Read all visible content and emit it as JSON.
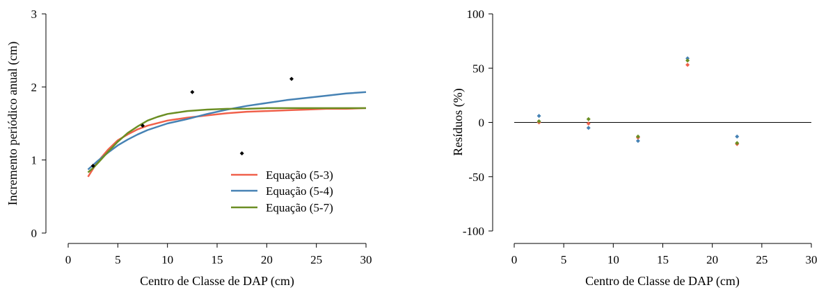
{
  "chart_data": [
    {
      "type": "line",
      "xlabel": "Centro de Classe de DAP (cm)",
      "ylabel": "Incremento periódico anual (cm)",
      "xlim": [
        0,
        30
      ],
      "ylim": [
        0,
        3
      ],
      "xticks": [
        "0",
        "5",
        "10",
        "15",
        "20",
        "25",
        "30"
      ],
      "yticks": [
        "0",
        "1",
        "2",
        "3"
      ],
      "observed": {
        "x": [
          2.5,
          7.5,
          12.5,
          17.5,
          22.5
        ],
        "y": [
          0.92,
          1.47,
          1.93,
          1.09,
          2.11
        ],
        "color": "#000000"
      },
      "series": [
        {
          "name": "Equação (5-3)",
          "color": "#f0604a",
          "x": [
            2,
            2.5,
            3,
            4,
            5,
            6,
            7,
            8,
            10,
            12,
            14,
            16,
            18,
            20,
            22,
            24,
            26,
            28,
            30
          ],
          "y": [
            0.77,
            0.88,
            0.98,
            1.14,
            1.27,
            1.35,
            1.42,
            1.47,
            1.54,
            1.58,
            1.61,
            1.64,
            1.66,
            1.67,
            1.68,
            1.69,
            1.7,
            1.7,
            1.71
          ]
        },
        {
          "name": "Equação (5-4)",
          "color": "#4682b4",
          "x": [
            2,
            2.5,
            3,
            4,
            5,
            6,
            7,
            8,
            10,
            12,
            14,
            16,
            18,
            20,
            22,
            24,
            26,
            28,
            30
          ],
          "y": [
            0.87,
            0.93,
            0.99,
            1.1,
            1.2,
            1.28,
            1.35,
            1.41,
            1.5,
            1.56,
            1.63,
            1.69,
            1.74,
            1.78,
            1.82,
            1.85,
            1.88,
            1.91,
            1.93
          ]
        },
        {
          "name": "Equação (5-7)",
          "color": "#6b8e23",
          "x": [
            2,
            2.5,
            3,
            4,
            5,
            6,
            7,
            8,
            9,
            10,
            12,
            14,
            16,
            18,
            20,
            22,
            24,
            26,
            28,
            30
          ],
          "y": [
            0.83,
            0.89,
            0.96,
            1.11,
            1.25,
            1.37,
            1.46,
            1.54,
            1.59,
            1.63,
            1.67,
            1.69,
            1.7,
            1.7,
            1.71,
            1.71,
            1.71,
            1.71,
            1.71,
            1.71
          ]
        }
      ],
      "legend_position": "bottom-right"
    },
    {
      "type": "scatter",
      "xlabel": "Centro de Classe de DAP (cm)",
      "ylabel": "Resíduos (%)",
      "xlim": [
        0,
        30
      ],
      "ylim": [
        -100,
        100
      ],
      "xticks": [
        "0",
        "5",
        "10",
        "15",
        "20",
        "25",
        "30"
      ],
      "yticks": [
        "-100",
        "-50",
        "0",
        "50",
        "100"
      ],
      "reference_line_y": 0,
      "series": [
        {
          "color": "#4682b4",
          "x": [
            2.5,
            7.5,
            12.5,
            17.5,
            22.5
          ],
          "y": [
            6,
            -5,
            -17,
            59,
            -13
          ]
        },
        {
          "color": "#f0604a",
          "x": [
            2.5,
            7.5,
            12.5,
            17.5,
            22.5
          ],
          "y": [
            0,
            -1,
            -14,
            53,
            -20
          ]
        },
        {
          "color": "#6b8e23",
          "x": [
            2.5,
            7.5,
            12.5,
            17.5,
            22.5
          ],
          "y": [
            1,
            3,
            -13,
            57,
            -19
          ]
        }
      ]
    }
  ]
}
